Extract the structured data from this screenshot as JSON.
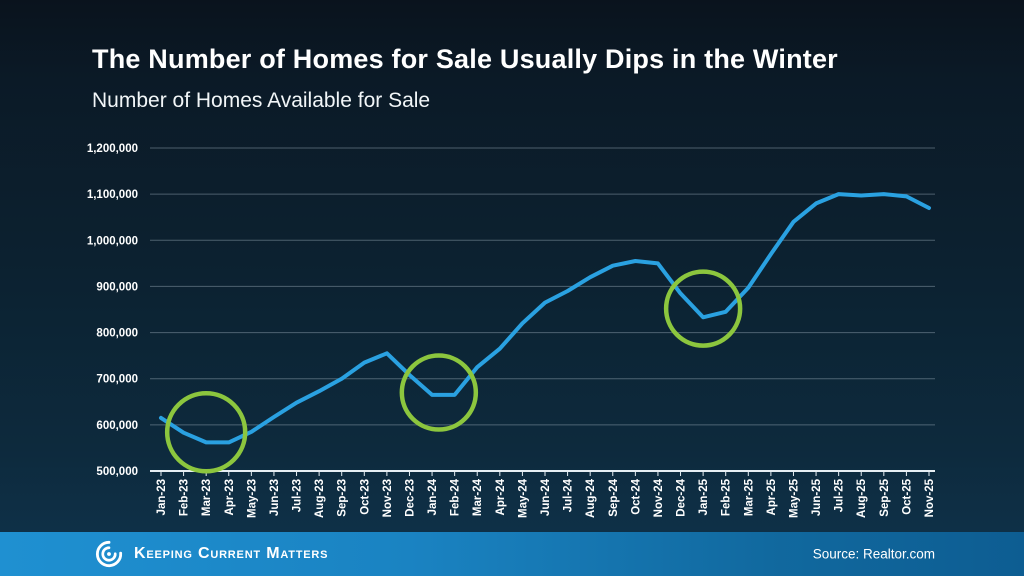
{
  "header": {
    "title": "The Number of Homes for Sale Usually Dips in the Winter",
    "subtitle": "Number of Homes Available for Sale"
  },
  "chart_data": {
    "type": "line",
    "title": "Number of Homes Available for Sale",
    "categories": [
      "Jan-23",
      "Feb-23",
      "Mar-23",
      "Apr-23",
      "May-23",
      "Jun-23",
      "Jul-23",
      "Aug-23",
      "Sep-23",
      "Oct-23",
      "Nov-23",
      "Dec-23",
      "Jan-24",
      "Feb-24",
      "Mar-24",
      "Apr-24",
      "May-24",
      "Jun-24",
      "Jul-24",
      "Aug-24",
      "Sep-24",
      "Oct-24",
      "Nov-24",
      "Dec-24",
      "Jan-25",
      "Feb-25",
      "Mar-25",
      "Apr-25",
      "May-25",
      "Jun-25",
      "Jul-25",
      "Aug-25",
      "Sep-25",
      "Oct-25",
      "Nov-25"
    ],
    "values": [
      615000,
      583000,
      562000,
      562000,
      585000,
      617000,
      648000,
      673000,
      700000,
      735000,
      755000,
      708000,
      665000,
      665000,
      725000,
      765000,
      820000,
      865000,
      890000,
      920000,
      945000,
      955000,
      950000,
      885000,
      833000,
      845000,
      897000,
      970000,
      1040000,
      1080000,
      1100000,
      1097000,
      1100000,
      1095000,
      1070000
    ],
    "ylabel": "",
    "xlabel": "",
    "ylim": [
      500000,
      1200000
    ],
    "ytick_step": 100000,
    "grid": "horizontal",
    "legend": "none",
    "line_color": "#2aa1e1",
    "grid_color": "rgba(170,185,198,0.42)",
    "axis_color": "#e6eef3",
    "tick_label_color": "#ffffff",
    "annotations": [
      {
        "type": "circle",
        "name": "winter-dip-2023",
        "center_month_index": 2.0,
        "center_value": 584000,
        "radius_px": 39,
        "color": "#8cc63e"
      },
      {
        "type": "circle",
        "name": "winter-dip-2024",
        "center_month_index": 12.3,
        "center_value": 670000,
        "radius_px": 37,
        "color": "#8cc63e"
      },
      {
        "type": "circle",
        "name": "winter-dip-2025",
        "center_month_index": 24.0,
        "center_value": 852000,
        "radius_px": 37,
        "color": "#8cc63e"
      }
    ]
  },
  "footer": {
    "brand": "Keeping Current Matters",
    "source": "Source: Realtor.com",
    "bar_color_left": "#1f90d1",
    "bar_color_right": "#0d5d92"
  }
}
